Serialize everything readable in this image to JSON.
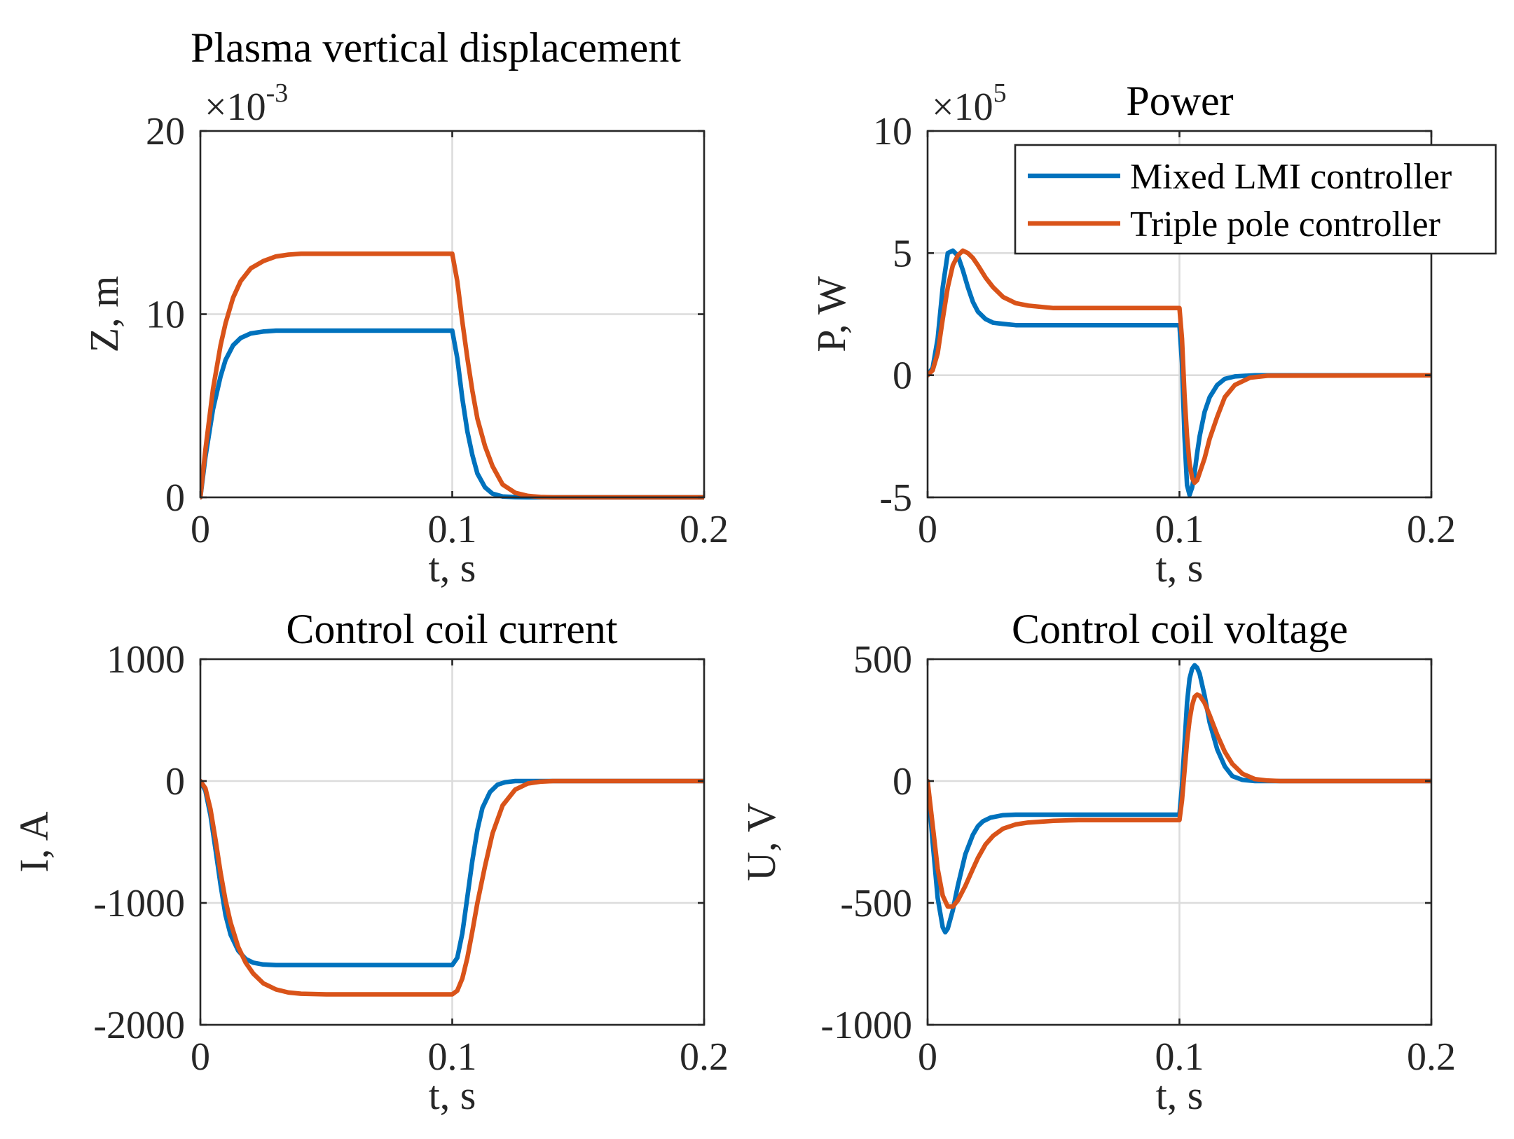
{
  "colors": {
    "mixed_lmi": "#0072BD",
    "triple_pole": "#D95319"
  },
  "legend": {
    "entries": [
      "Mixed LMI controller",
      "Triple pole controller"
    ],
    "location": "top-right of Power subplot"
  },
  "chart_data": [
    {
      "id": "plasma",
      "type": "line",
      "title": "Plasma vertical displacement",
      "xlabel": "t, s",
      "ylabel": "Z, m",
      "xlim": [
        0,
        0.2
      ],
      "ylim": [
        0,
        20
      ],
      "xticks": [
        0,
        0.1,
        0.2
      ],
      "xtick_labels": [
        "0",
        "0.1",
        "0.2"
      ],
      "yticks": [
        0,
        10,
        20
      ],
      "ytick_labels": [
        "0",
        "10",
        "20"
      ],
      "exponent": {
        "base": "×10",
        "power": "-3"
      },
      "grid": true,
      "series": [
        {
          "name": "Mixed LMI controller",
          "x": [
            0,
            0.002,
            0.005,
            0.008,
            0.01,
            0.013,
            0.016,
            0.02,
            0.025,
            0.03,
            0.04,
            0.06,
            0.08,
            0.1,
            0.102,
            0.104,
            0.106,
            0.108,
            0.11,
            0.113,
            0.116,
            0.12,
            0.125,
            0.13,
            0.14,
            0.15,
            0.2
          ],
          "y": [
            0,
            2.2,
            4.8,
            6.6,
            7.5,
            8.3,
            8.7,
            8.95,
            9.05,
            9.1,
            9.1,
            9.1,
            9.1,
            9.1,
            7.6,
            5.4,
            3.6,
            2.3,
            1.3,
            0.55,
            0.2,
            0.05,
            0.01,
            0,
            0,
            0,
            0
          ]
        },
        {
          "name": "Triple pole controller",
          "x": [
            0,
            0.002,
            0.005,
            0.008,
            0.01,
            0.013,
            0.016,
            0.02,
            0.025,
            0.03,
            0.035,
            0.04,
            0.05,
            0.06,
            0.08,
            0.1,
            0.102,
            0.104,
            0.106,
            0.108,
            0.11,
            0.113,
            0.116,
            0.12,
            0.125,
            0.13,
            0.135,
            0.14,
            0.15,
            0.2
          ],
          "y": [
            0,
            2.6,
            5.9,
            8.3,
            9.5,
            10.9,
            11.8,
            12.5,
            12.9,
            13.15,
            13.25,
            13.3,
            13.3,
            13.3,
            13.3,
            13.3,
            11.8,
            9.6,
            7.6,
            5.8,
            4.3,
            2.8,
            1.7,
            0.7,
            0.25,
            0.08,
            0.02,
            0,
            0,
            0
          ]
        }
      ]
    },
    {
      "id": "power",
      "type": "line",
      "title": "Power",
      "xlabel": "t, s",
      "ylabel": "P, W",
      "xlim": [
        0,
        0.2
      ],
      "ylim": [
        -5,
        10
      ],
      "xticks": [
        0,
        0.1,
        0.2
      ],
      "xtick_labels": [
        "0",
        "0.1",
        "0.2"
      ],
      "yticks": [
        -5,
        0,
        5,
        10
      ],
      "ytick_labels": [
        "-5",
        "0",
        "5",
        "10"
      ],
      "exponent": {
        "base": "×10",
        "power": "5"
      },
      "grid": true,
      "series": [
        {
          "name": "Mixed LMI controller",
          "x": [
            0,
            0.002,
            0.004,
            0.006,
            0.008,
            0.01,
            0.012,
            0.014,
            0.016,
            0.018,
            0.02,
            0.023,
            0.026,
            0.03,
            0.035,
            0.04,
            0.06,
            0.08,
            0.1,
            0.101,
            0.102,
            0.103,
            0.104,
            0.105,
            0.106,
            0.107,
            0.108,
            0.11,
            0.112,
            0.115,
            0.118,
            0.122,
            0.13,
            0.2
          ],
          "y": [
            0,
            0.3,
            1.5,
            3.6,
            5.0,
            5.1,
            4.9,
            4.3,
            3.6,
            3.0,
            2.6,
            2.3,
            2.15,
            2.1,
            2.05,
            2.05,
            2.05,
            2.05,
            2.05,
            0.5,
            -2.5,
            -4.5,
            -4.9,
            -4.6,
            -4.0,
            -3.2,
            -2.5,
            -1.5,
            -0.9,
            -0.4,
            -0.15,
            -0.05,
            0,
            0
          ]
        },
        {
          "name": "Triple pole controller",
          "x": [
            0,
            0.002,
            0.004,
            0.006,
            0.008,
            0.01,
            0.012,
            0.014,
            0.016,
            0.018,
            0.02,
            0.023,
            0.026,
            0.03,
            0.035,
            0.04,
            0.05,
            0.06,
            0.08,
            0.1,
            0.101,
            0.102,
            0.103,
            0.104,
            0.105,
            0.106,
            0.107,
            0.108,
            0.11,
            0.112,
            0.115,
            0.118,
            0.122,
            0.128,
            0.135,
            0.2
          ],
          "y": [
            0,
            0.2,
            0.9,
            2.3,
            3.6,
            4.5,
            4.9,
            5.1,
            5.0,
            4.8,
            4.5,
            4.0,
            3.6,
            3.2,
            2.95,
            2.85,
            2.75,
            2.75,
            2.75,
            2.75,
            1.5,
            -0.8,
            -2.5,
            -3.6,
            -4.2,
            -4.4,
            -4.3,
            -4.0,
            -3.4,
            -2.6,
            -1.7,
            -0.9,
            -0.4,
            -0.1,
            -0.02,
            0
          ]
        }
      ]
    },
    {
      "id": "current",
      "type": "line",
      "title": "Control coil current",
      "xlabel": "t, s",
      "ylabel": "I, A",
      "xlim": [
        0,
        0.2
      ],
      "ylim": [
        -2000,
        1000
      ],
      "xticks": [
        0,
        0.1,
        0.2
      ],
      "xtick_labels": [
        "0",
        "0.1",
        "0.2"
      ],
      "yticks": [
        -2000,
        -1000,
        0,
        1000
      ],
      "ytick_labels": [
        "-2000",
        "-1000",
        "0",
        "1000"
      ],
      "grid": true,
      "series": [
        {
          "name": "Mixed LMI controller",
          "x": [
            0,
            0.002,
            0.004,
            0.006,
            0.008,
            0.01,
            0.012,
            0.015,
            0.018,
            0.021,
            0.025,
            0.03,
            0.04,
            0.06,
            0.08,
            0.1,
            0.102,
            0.104,
            0.106,
            0.108,
            0.11,
            0.112,
            0.115,
            0.118,
            0.121,
            0.125,
            0.13,
            0.2
          ],
          "y": [
            0,
            -80,
            -280,
            -560,
            -850,
            -1100,
            -1260,
            -1390,
            -1460,
            -1490,
            -1505,
            -1510,
            -1510,
            -1510,
            -1510,
            -1510,
            -1450,
            -1250,
            -950,
            -650,
            -400,
            -220,
            -90,
            -30,
            -10,
            0,
            0,
            0
          ]
        },
        {
          "name": "Triple pole controller",
          "x": [
            0,
            0.002,
            0.004,
            0.006,
            0.008,
            0.01,
            0.012,
            0.015,
            0.018,
            0.021,
            0.025,
            0.03,
            0.035,
            0.04,
            0.05,
            0.06,
            0.08,
            0.1,
            0.102,
            0.104,
            0.106,
            0.108,
            0.11,
            0.113,
            0.116,
            0.12,
            0.125,
            0.13,
            0.135,
            0.14,
            0.2
          ],
          "y": [
            0,
            -60,
            -230,
            -480,
            -750,
            -980,
            -1160,
            -1360,
            -1490,
            -1580,
            -1660,
            -1710,
            -1735,
            -1745,
            -1750,
            -1750,
            -1750,
            -1750,
            -1720,
            -1620,
            -1450,
            -1230,
            -1000,
            -700,
            -430,
            -200,
            -70,
            -20,
            -5,
            0,
            0
          ]
        }
      ]
    },
    {
      "id": "voltage",
      "type": "line",
      "title": "Control coil voltage",
      "xlabel": "t, s",
      "ylabel": "U, V",
      "xlim": [
        0,
        0.2
      ],
      "ylim": [
        -1000,
        500
      ],
      "xticks": [
        0,
        0.1,
        0.2
      ],
      "xtick_labels": [
        "0",
        "0.1",
        "0.2"
      ],
      "yticks": [
        -1000,
        -500,
        0,
        500
      ],
      "ytick_labels": [
        "-1000",
        "-500",
        "0",
        "500"
      ],
      "grid": true,
      "series": [
        {
          "name": "Mixed LMI controller",
          "x": [
            0,
            0.002,
            0.004,
            0.006,
            0.007,
            0.008,
            0.01,
            0.012,
            0.015,
            0.018,
            0.02,
            0.022,
            0.025,
            0.03,
            0.035,
            0.04,
            0.06,
            0.08,
            0.1,
            0.101,
            0.102,
            0.103,
            0.104,
            0.105,
            0.106,
            0.107,
            0.108,
            0.11,
            0.112,
            0.115,
            0.118,
            0.121,
            0.125,
            0.13,
            0.2
          ],
          "y": [
            0,
            -250,
            -480,
            -600,
            -620,
            -605,
            -530,
            -430,
            -300,
            -220,
            -185,
            -165,
            -150,
            -140,
            -138,
            -138,
            -138,
            -138,
            -138,
            -20,
            150,
            320,
            420,
            460,
            475,
            465,
            440,
            350,
            240,
            130,
            60,
            20,
            5,
            0,
            0
          ]
        },
        {
          "name": "Triple pole controller",
          "x": [
            0,
            0.002,
            0.004,
            0.006,
            0.008,
            0.01,
            0.012,
            0.015,
            0.018,
            0.02,
            0.023,
            0.026,
            0.03,
            0.035,
            0.04,
            0.05,
            0.06,
            0.08,
            0.1,
            0.101,
            0.102,
            0.103,
            0.104,
            0.105,
            0.106,
            0.107,
            0.108,
            0.11,
            0.112,
            0.115,
            0.118,
            0.121,
            0.125,
            0.13,
            0.135,
            0.14,
            0.2
          ],
          "y": [
            0,
            -180,
            -360,
            -470,
            -515,
            -515,
            -490,
            -430,
            -360,
            -315,
            -260,
            -225,
            -195,
            -178,
            -170,
            -163,
            -160,
            -160,
            -160,
            -80,
            40,
            160,
            250,
            310,
            345,
            355,
            350,
            320,
            270,
            190,
            120,
            70,
            30,
            8,
            2,
            0,
            0
          ]
        }
      ]
    }
  ]
}
